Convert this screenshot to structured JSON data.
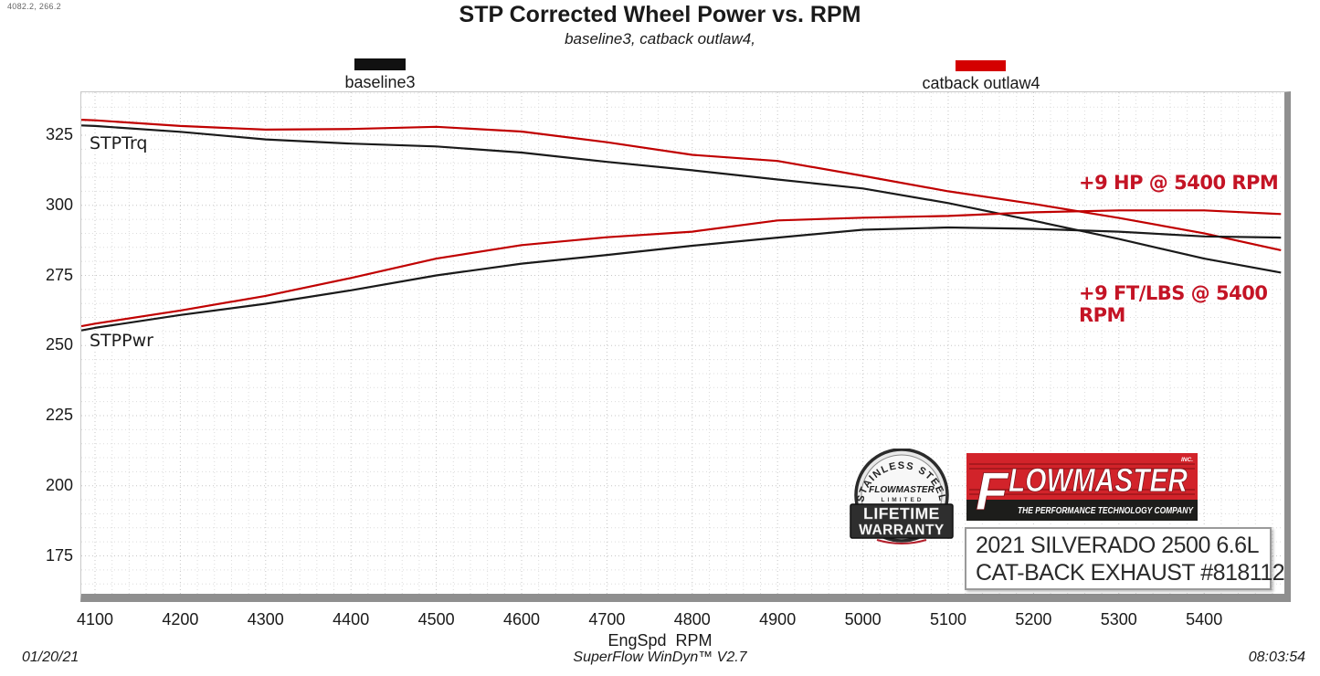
{
  "meta": {
    "cursor_readout": "4082.2, 266.2",
    "footer_date": "01/20/21",
    "footer_app": "SuperFlow WinDyn™ V2.7",
    "footer_time": "08:03:54"
  },
  "chart_data": {
    "type": "line",
    "title": "STP Corrected Wheel Power vs. RPM",
    "subtitle": "baseline3, catback outlaw4,",
    "xlabel": "EngSpd  RPM",
    "x_ticks": [
      4100,
      4200,
      4300,
      4400,
      4500,
      4600,
      4700,
      4800,
      4900,
      5000,
      5100,
      5200,
      5300,
      5400
    ],
    "y_ticks": [
      175,
      200,
      225,
      250,
      275,
      300,
      325
    ],
    "xlim": [
      4084,
      5495
    ],
    "ylim": [
      161,
      340
    ],
    "grid": "dotted, minor x every 20 RPM, minor y every 5",
    "legend_position": "top",
    "legend": [
      {
        "label": "baseline3",
        "color": "#111111"
      },
      {
        "label": "catback outlaw4",
        "color": "#d40000"
      }
    ],
    "curve_labels": [
      {
        "text": "STPTrq"
      },
      {
        "text": "STPPwr"
      }
    ],
    "annotations": [
      {
        "text": "+9 HP @ 5400 RPM"
      },
      {
        "text": "+9 FT/LBS @ 5400 RPM"
      }
    ],
    "x": [
      4084,
      4100,
      4200,
      4300,
      4400,
      4500,
      4600,
      4700,
      4800,
      4900,
      5000,
      5100,
      5200,
      5300,
      5400,
      5490
    ],
    "series": [
      {
        "name": "baseline3 STPTrq",
        "color": "#1a1a1a",
        "values": [
          328.5,
          328.3,
          326.2,
          323.5,
          322.0,
          321.0,
          318.8,
          315.5,
          312.5,
          309.2,
          306.0,
          300.8,
          294.5,
          288.0,
          281.0,
          276.0
        ]
      },
      {
        "name": "catback outlaw4 STPTrq",
        "color": "#c00000",
        "values": [
          330.5,
          330.3,
          328.3,
          327.0,
          327.2,
          328.0,
          326.3,
          322.5,
          318.0,
          315.8,
          310.5,
          305.0,
          300.5,
          295.5,
          290.0,
          284.0
        ]
      },
      {
        "name": "baseline3 STPPwr",
        "color": "#1a1a1a",
        "values": [
          255.4,
          256.3,
          260.9,
          264.9,
          269.7,
          275.0,
          279.2,
          282.3,
          285.6,
          288.5,
          291.3,
          292.1,
          291.6,
          290.6,
          288.9,
          288.5
        ]
      },
      {
        "name": "catback outlaw4 STPPwr",
        "color": "#c00000",
        "values": [
          256.9,
          257.8,
          262.5,
          267.7,
          274.1,
          281.0,
          285.8,
          288.6,
          290.6,
          294.6,
          295.6,
          296.2,
          297.5,
          298.2,
          298.2,
          296.9
        ]
      }
    ]
  },
  "branding": {
    "badge": {
      "arc_text": "STAINLESS STEEL",
      "brand": "FLOWMASTER",
      "limited": "LIMITED",
      "line1": "LIFETIME",
      "line2": "WARRANTY"
    },
    "logo": {
      "name_initial": "F",
      "name_rest": "LOWMASTER",
      "inc": "INC.",
      "tagline": "THE PERFORMANCE TECHNOLOGY COMPANY",
      "red": "#d2232a",
      "black": "#1d1d1b"
    },
    "info_box": {
      "line1": "2021 SILVERADO 2500 6.6L",
      "line2": "CAT-BACK EXHAUST #818112"
    }
  }
}
